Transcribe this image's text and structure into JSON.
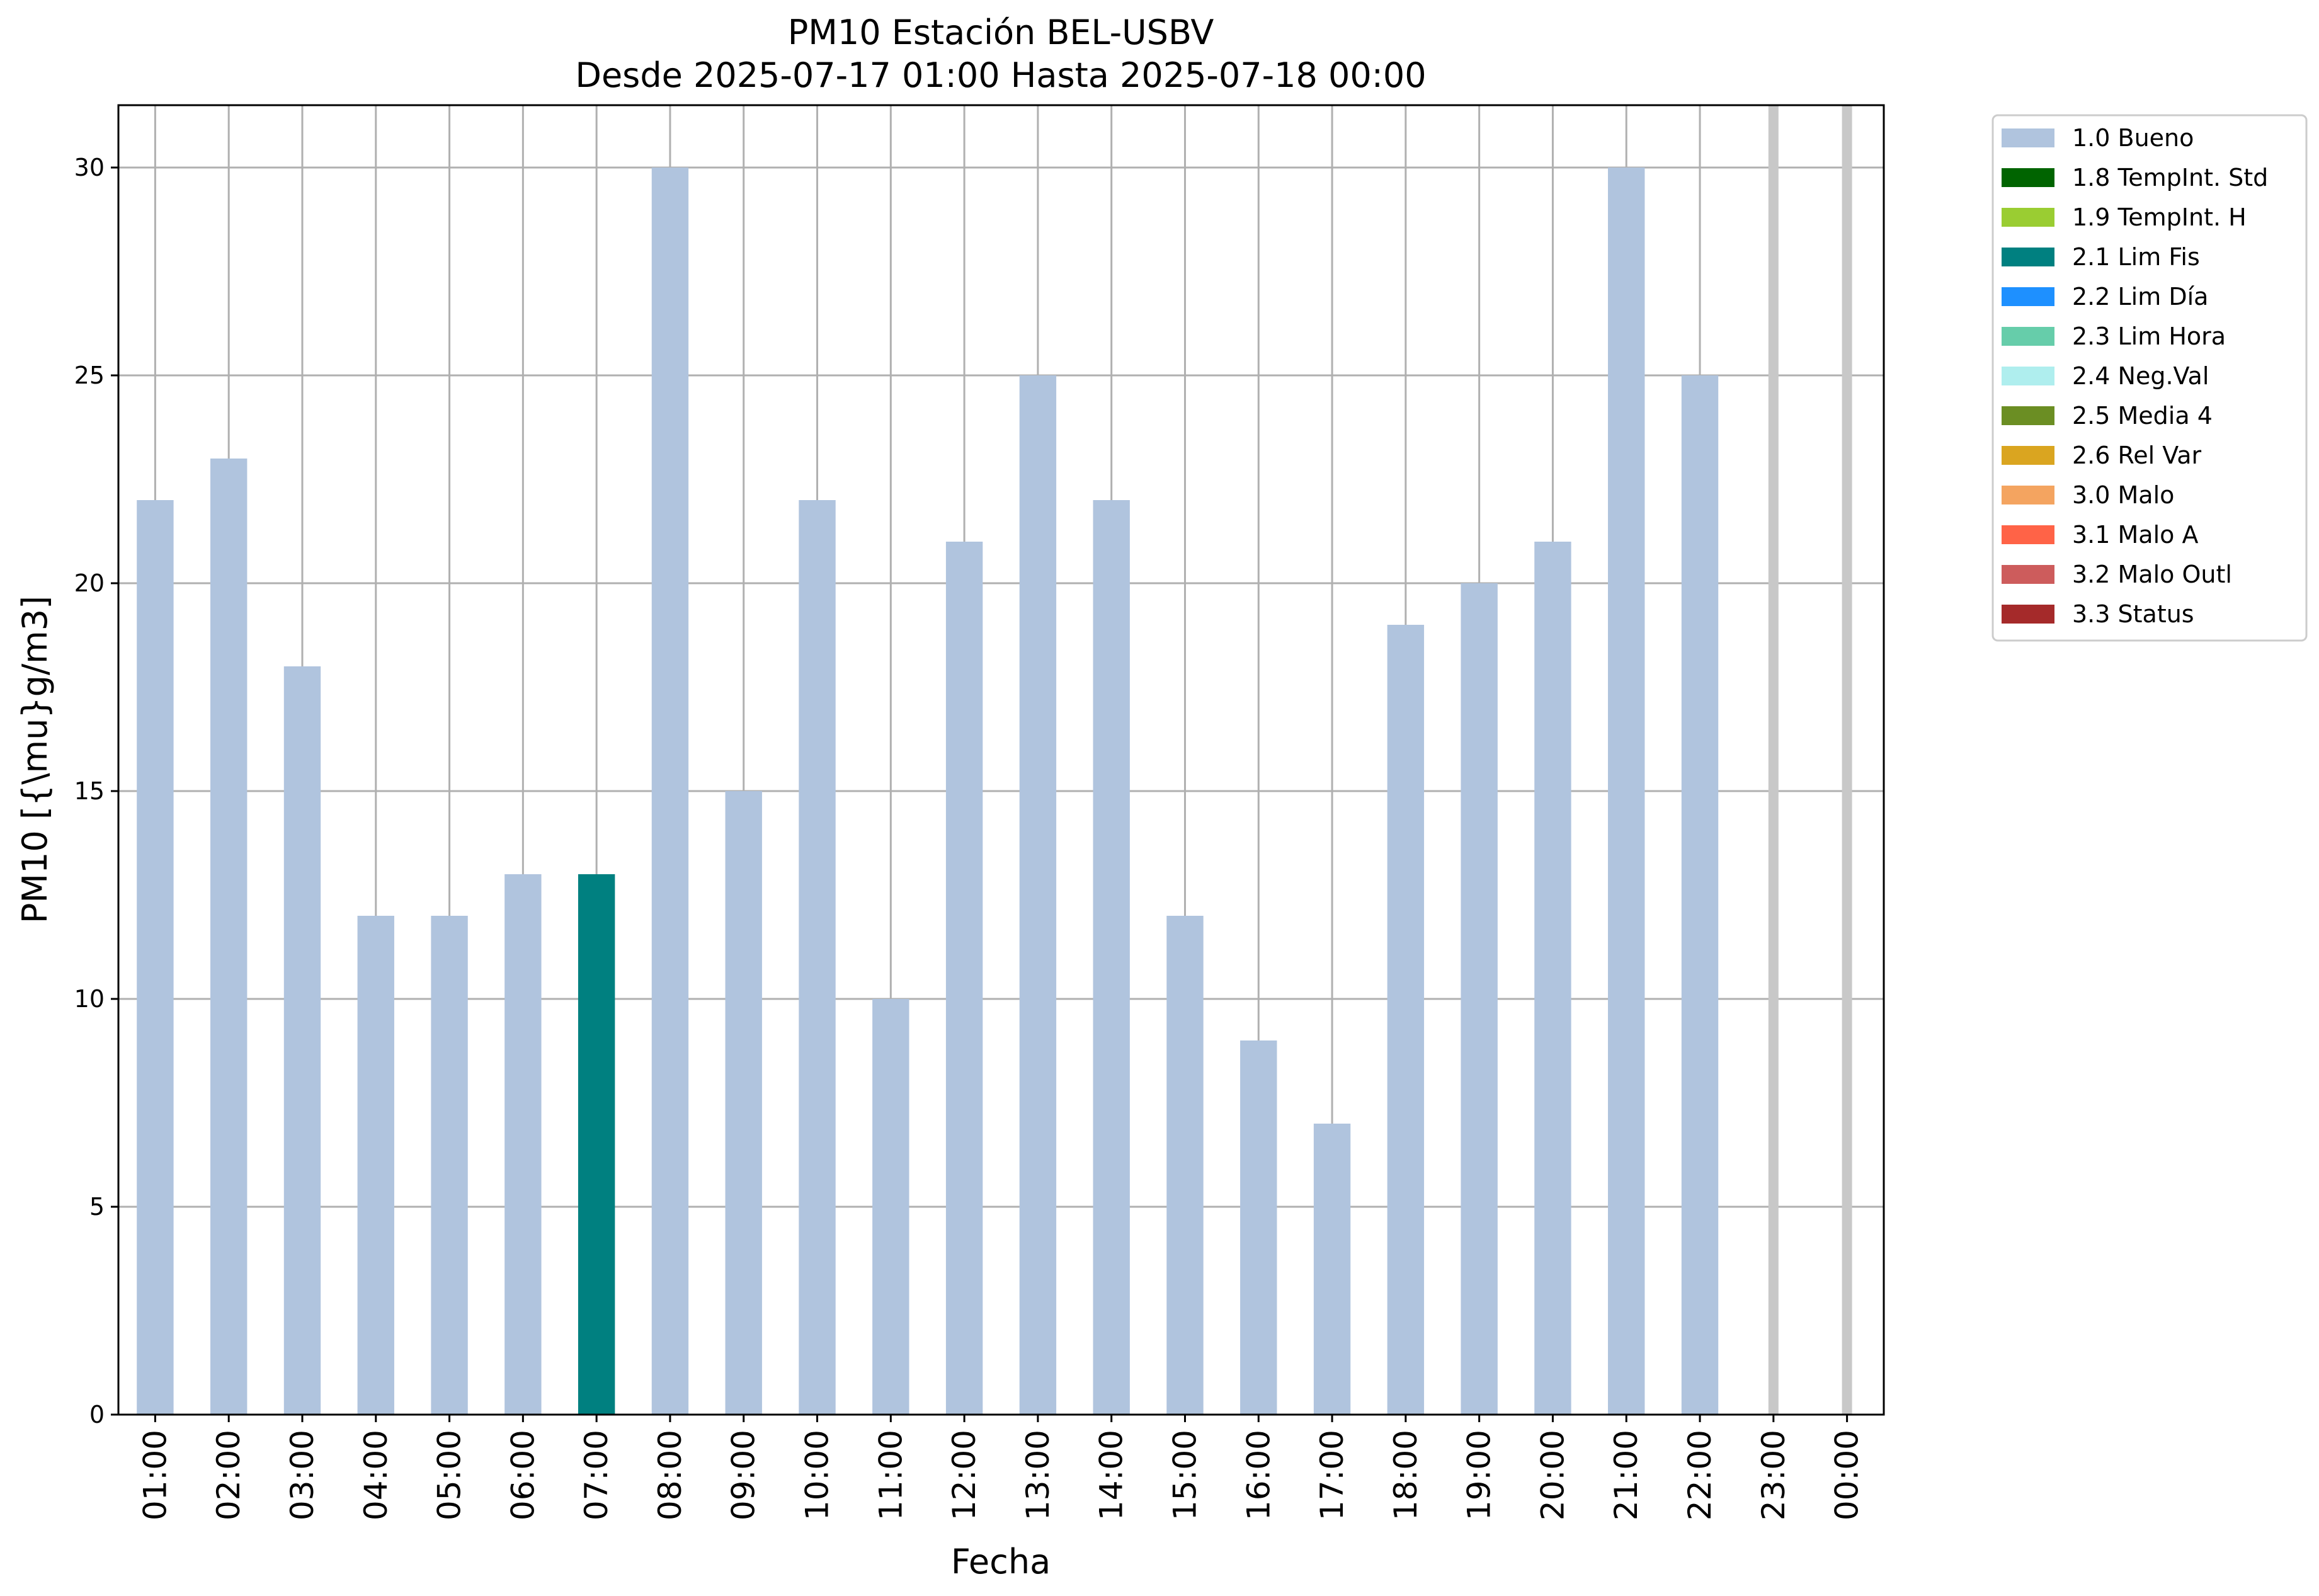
{
  "chart_data": {
    "type": "bar",
    "title": "PM10 Estación BEL-USBV",
    "subtitle": "Desde 2025-07-17 01:00 Hasta 2025-07-18 00:00",
    "xlabel": "Fecha",
    "ylabel": "PM10 [{\\mu}g/m3]",
    "ylim": [
      0,
      31.5
    ],
    "yticks": [
      0,
      5,
      10,
      15,
      20,
      25,
      30
    ],
    "grid": true,
    "legend_position": "outside-top-right",
    "categories": [
      "01:00",
      "02:00",
      "03:00",
      "04:00",
      "05:00",
      "06:00",
      "07:00",
      "08:00",
      "09:00",
      "10:00",
      "11:00",
      "12:00",
      "13:00",
      "14:00",
      "15:00",
      "16:00",
      "17:00",
      "18:00",
      "19:00",
      "20:00",
      "21:00",
      "22:00",
      "23:00",
      "00:00"
    ],
    "values": [
      22,
      23,
      18,
      12,
      12,
      13,
      13,
      30,
      15,
      22,
      10,
      21,
      25,
      22,
      12,
      9,
      7,
      19,
      20,
      21,
      30,
      25,
      null,
      null
    ],
    "flags": [
      "1.0 Bueno",
      "1.0 Bueno",
      "1.0 Bueno",
      "1.0 Bueno",
      "1.0 Bueno",
      "1.0 Bueno",
      "2.1 Lim Fis",
      "1.0 Bueno",
      "1.0 Bueno",
      "1.0 Bueno",
      "1.0 Bueno",
      "1.0 Bueno",
      "1.0 Bueno",
      "1.0 Bueno",
      "1.0 Bueno",
      "1.0 Bueno",
      "1.0 Bueno",
      "1.0 Bueno",
      "1.0 Bueno",
      "1.0 Bueno",
      "1.0 Bueno",
      "1.0 Bueno",
      null,
      null
    ],
    "missing_marker_color": "#c8c8c8",
    "legend": [
      {
        "label": "1.0 Bueno",
        "color": "#b0c4de"
      },
      {
        "label": "1.8 TempInt. Std",
        "color": "#006400"
      },
      {
        "label": "1.9 TempInt. H",
        "color": "#9acd32"
      },
      {
        "label": "2.1 Lim Fis",
        "color": "#008080"
      },
      {
        "label": "2.2 Lim Día",
        "color": "#1e90ff"
      },
      {
        "label": "2.3 Lim Hora",
        "color": "#66cdaa"
      },
      {
        "label": "2.4 Neg.Val",
        "color": "#afeeee"
      },
      {
        "label": "2.5 Media 4",
        "color": "#6b8e23"
      },
      {
        "label": "2.6 Rel Var",
        "color": "#daa520"
      },
      {
        "label": "3.0 Malo",
        "color": "#f4a460"
      },
      {
        "label": "3.1 Malo A",
        "color": "#ff6347"
      },
      {
        "label": "3.2 Malo Outl",
        "color": "#cd5c5c"
      },
      {
        "label": "3.3 Status",
        "color": "#a52a2a"
      }
    ]
  }
}
